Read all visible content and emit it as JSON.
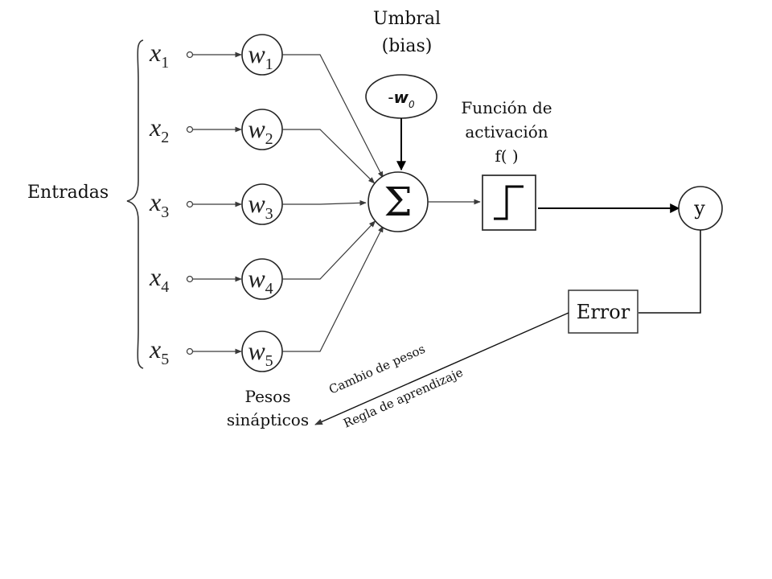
{
  "labels": {
    "inputs_group": "Entradas",
    "bias_title_line1": "Umbral",
    "bias_title_line2": "(bias)",
    "bias_node_sign": "-",
    "bias_node_var": "w",
    "bias_node_sub": "0",
    "summation_symbol": "Σ",
    "activation_line1": "Función de",
    "activation_line2": "activación",
    "activation_line3": "f( )",
    "output": "y",
    "error": "Error",
    "weights_line1": "Pesos",
    "weights_line2": "sinápticos",
    "weight_change": "Cambio de pesos",
    "learning_rule": "Regla de aprendizaje"
  },
  "inputs": [
    {
      "var": "x",
      "sub": "1",
      "weight_var": "w",
      "weight_sub": "1"
    },
    {
      "var": "x",
      "sub": "2",
      "weight_var": "w",
      "weight_sub": "2"
    },
    {
      "var": "x",
      "sub": "3",
      "weight_var": "w",
      "weight_sub": "3"
    },
    {
      "var": "x",
      "sub": "4",
      "weight_var": "w",
      "weight_sub": "4"
    },
    {
      "var": "x",
      "sub": "5",
      "weight_var": "w",
      "weight_sub": "5"
    }
  ],
  "colors": {
    "lines": "#3a3a3a",
    "text": "#111111",
    "background": "#ffffff"
  }
}
